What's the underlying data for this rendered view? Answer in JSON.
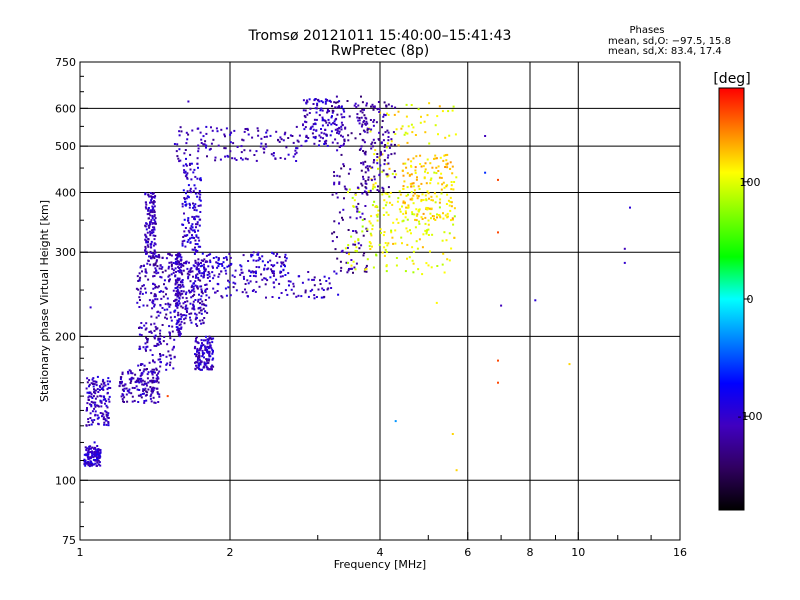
{
  "chart_data": {
    "type": "scatter",
    "title": "Tromsø 20121011 15:40:00–15:41:43",
    "subtitle": "RwPretec (8p)",
    "xlabel": "Frequency [MHz]",
    "ylabel": "Stationary phase Virtual Height [km]",
    "x_scale": "log",
    "y_scale": "log",
    "xlim": [
      1,
      16
    ],
    "ylim": [
      75,
      750
    ],
    "x_ticks": [
      1,
      2,
      4,
      6,
      8,
      10,
      16
    ],
    "x_gridlines": [
      2,
      4,
      6,
      8,
      10
    ],
    "x_minor_ticks": [
      3,
      5,
      7,
      9,
      12,
      14
    ],
    "y_ticks": [
      75,
      100,
      200,
      300,
      400,
      500,
      600,
      750
    ],
    "y_gridlines": [
      100,
      200,
      300,
      400,
      500,
      600
    ],
    "grid": true,
    "phase_stats": {
      "heading": "Phases",
      "line_o": "mean, sd,O: −97.5, 15.8",
      "line_x": "mean, sd,X: 83.4, 17.4"
    },
    "colorbar": {
      "label": "[deg]",
      "range": [
        -180,
        180
      ],
      "ticks": [
        100,
        0,
        -100
      ],
      "tick_labels": [
        "100",
        "0",
        "-100"
      ],
      "colors": [
        "#ff0000",
        "#ff8000",
        "#ffff00",
        "#80ff00",
        "#00ff00",
        "#00ffff",
        "#0080ff",
        "#0000ff",
        "#4000c0",
        "#300060",
        "#000000"
      ]
    },
    "series": [
      {
        "segments": [
          {
            "f": [
              1.02,
              1.1
            ],
            "h": [
              107,
              118
            ],
            "phase": -100
          },
          {
            "f": [
              1.03,
              1.15
            ],
            "h": [
              130,
              165
            ],
            "phase": -105
          },
          {
            "f": [
              1.2,
              1.45
            ],
            "h": [
              145,
              170
            ],
            "phase": -110
          },
          {
            "f": [
              1.3,
              1.45
            ],
            "h": [
              160,
              290
            ],
            "phase": -110
          },
          {
            "f": [
              1.35,
              1.42
            ],
            "h": [
              290,
              400
            ],
            "phase": -108
          },
          {
            "f": [
              1.4,
              1.55
            ],
            "h": [
              170,
              300
            ],
            "phase": -112
          },
          {
            "f": [
              1.55,
              1.6
            ],
            "h": [
              200,
              300
            ],
            "phase": -105
          },
          {
            "f": [
              1.6,
              1.8
            ],
            "h": [
              210,
              290
            ],
            "phase": -110
          },
          {
            "f": [
              1.6,
              1.75
            ],
            "h": [
              300,
              460
            ],
            "phase": -100
          },
          {
            "f": [
              1.7,
              1.85
            ],
            "h": [
              170,
              200
            ],
            "phase": -105
          },
          {
            "f": [
              1.55,
              2.8
            ],
            "h": [
              465,
              550
            ],
            "phase": -110
          },
          {
            "f": [
              1.65,
              3.3
            ],
            "h": [
              240,
              275
            ],
            "phase": -108
          },
          {
            "f": [
              1.7,
              2.6
            ],
            "h": [
              265,
              300
            ],
            "phase": -100
          },
          {
            "f": [
              2.8,
              3.4
            ],
            "h": [
              500,
              630
            ],
            "phase": -105
          },
          {
            "f": [
              3.2,
              3.8
            ],
            "h": [
              270,
              640
            ],
            "phase": -120
          },
          {
            "f": [
              3.4,
              5.7
            ],
            "h": [
              270,
              420
            ],
            "phase": 100
          },
          {
            "f": [
              3.8,
              5.7
            ],
            "h": [
              300,
              620
            ],
            "phase": 110
          },
          {
            "f": [
              3.6,
              4.3
            ],
            "h": [
              400,
              620
            ],
            "phase": -120
          },
          {
            "f": [
              4.4,
              5.6
            ],
            "h": [
              350,
              480
            ],
            "phase": 120
          }
        ],
        "outliers": [
          {
            "f": 1.05,
            "h": 230,
            "phase": -100
          },
          {
            "f": 1.07,
            "h": 120,
            "phase": -90
          },
          {
            "f": 1.5,
            "h": 150,
            "phase": 160
          },
          {
            "f": 1.65,
            "h": 620,
            "phase": -105
          },
          {
            "f": 4.3,
            "h": 133,
            "phase": -30
          },
          {
            "f": 5.2,
            "h": 235,
            "phase": 110
          },
          {
            "f": 5.6,
            "h": 125,
            "phase": 120
          },
          {
            "f": 5.7,
            "h": 105,
            "phase": 120
          },
          {
            "f": 6.5,
            "h": 525,
            "phase": -110
          },
          {
            "f": 6.5,
            "h": 440,
            "phase": -60
          },
          {
            "f": 6.9,
            "h": 425,
            "phase": 160
          },
          {
            "f": 6.9,
            "h": 330,
            "phase": 160
          },
          {
            "f": 6.9,
            "h": 178,
            "phase": 160
          },
          {
            "f": 6.9,
            "h": 160,
            "phase": 160
          },
          {
            "f": 7.0,
            "h": 232,
            "phase": -110
          },
          {
            "f": 8.2,
            "h": 238,
            "phase": -95
          },
          {
            "f": 9.6,
            "h": 175,
            "phase": 120
          },
          {
            "f": 12.4,
            "h": 305,
            "phase": -110
          },
          {
            "f": 12.4,
            "h": 285,
            "phase": -100
          },
          {
            "f": 12.7,
            "h": 372,
            "phase": -95
          }
        ]
      }
    ]
  }
}
